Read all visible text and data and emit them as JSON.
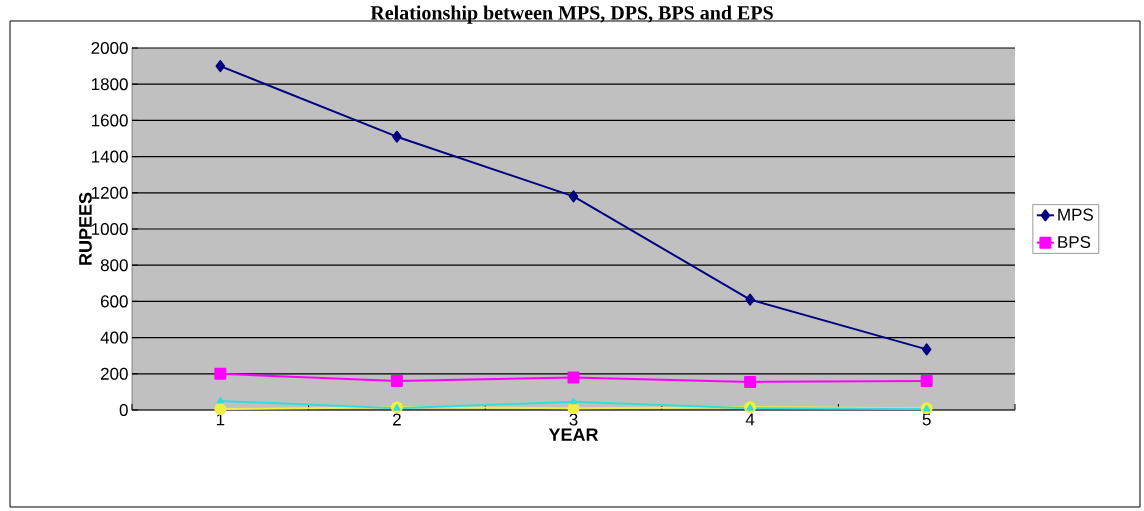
{
  "chart_data": {
    "type": "line",
    "title": "Relationship between MPS, DPS, BPS and EPS",
    "xlabel": "YEAR",
    "ylabel": "RUPEES",
    "categories": [
      "1",
      "2",
      "3",
      "4",
      "5"
    ],
    "series": [
      {
        "name": "MPS",
        "color": "#000080",
        "marker": "diamond",
        "values": [
          1900,
          1510,
          1180,
          610,
          335
        ]
      },
      {
        "name": "BPS",
        "color": "#ff00ff",
        "marker": "square",
        "values": [
          200,
          160,
          180,
          155,
          160
        ]
      },
      {
        "color": "#33dddd",
        "marker": "triangle",
        "values": [
          50,
          10,
          45,
          10,
          5
        ]
      },
      {
        "color": "#eeee44",
        "marker": "circle",
        "values": [
          5,
          15,
          10,
          15,
          10
        ]
      }
    ],
    "ylim": [
      0,
      2000
    ],
    "yticks": [
      0,
      200,
      400,
      600,
      800,
      1000,
      1200,
      1400,
      1600,
      1800,
      2000
    ],
    "grid": "y",
    "legend": "right",
    "line_style": "solid"
  }
}
